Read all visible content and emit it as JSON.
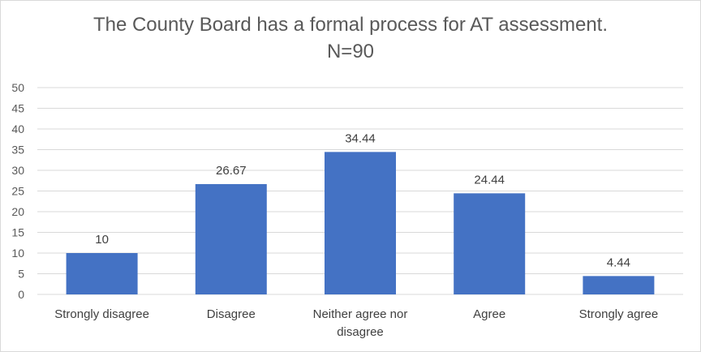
{
  "chart_data": {
    "type": "bar",
    "title": "The County Board has a formal process for AT assessment.",
    "subtitle": "N=90",
    "categories": [
      [
        "Strongly disagree"
      ],
      [
        "Disagree"
      ],
      [
        "Neither agree nor",
        "disagree"
      ],
      [
        "Agree"
      ],
      [
        "Strongly agree"
      ]
    ],
    "values": [
      10,
      26.67,
      34.44,
      24.44,
      4.44
    ],
    "data_labels": [
      "10",
      "26.67",
      "34.44",
      "24.44",
      "4.44"
    ],
    "ylim": [
      0,
      50
    ],
    "yticks": [
      "0",
      "5",
      "10",
      "15",
      "20",
      "25",
      "30",
      "35",
      "40",
      "45",
      "50"
    ],
    "grid": true,
    "bar_color": "#4472c4",
    "grid_color": "#d9d9d9"
  }
}
